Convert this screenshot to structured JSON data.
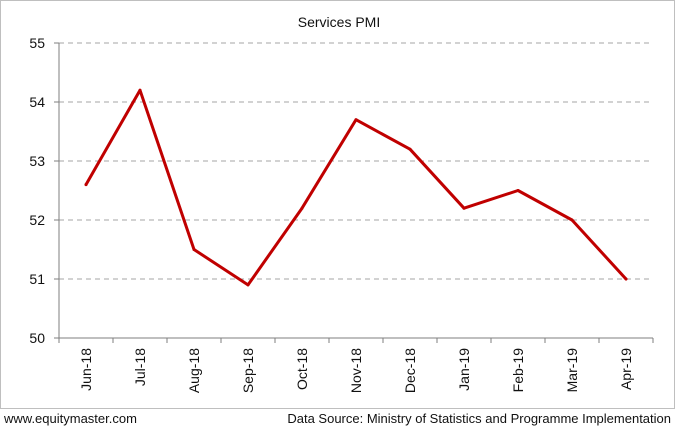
{
  "chart_data": {
    "type": "line",
    "title": "Services PMI",
    "xlabel": "",
    "ylabel": "",
    "categories": [
      "Jun-18",
      "Jul-18",
      "Aug-18",
      "Sep-18",
      "Oct-18",
      "Nov-18",
      "Dec-18",
      "Jan-19",
      "Feb-19",
      "Mar-19",
      "Apr-19"
    ],
    "series": [
      {
        "values": [
          52.6,
          54.2,
          51.5,
          50.9,
          52.2,
          53.7,
          53.2,
          52.2,
          52.5,
          52.0,
          51.0
        ]
      }
    ],
    "ylim": [
      50,
      55
    ],
    "yticks": [
      50,
      51,
      52,
      53,
      54,
      55
    ],
    "grid": true,
    "line_color": "#c00000"
  },
  "footer": {
    "site": "www.equitymaster.com",
    "source": "Data Source: Ministry of Statistics and Programme Implementation"
  }
}
